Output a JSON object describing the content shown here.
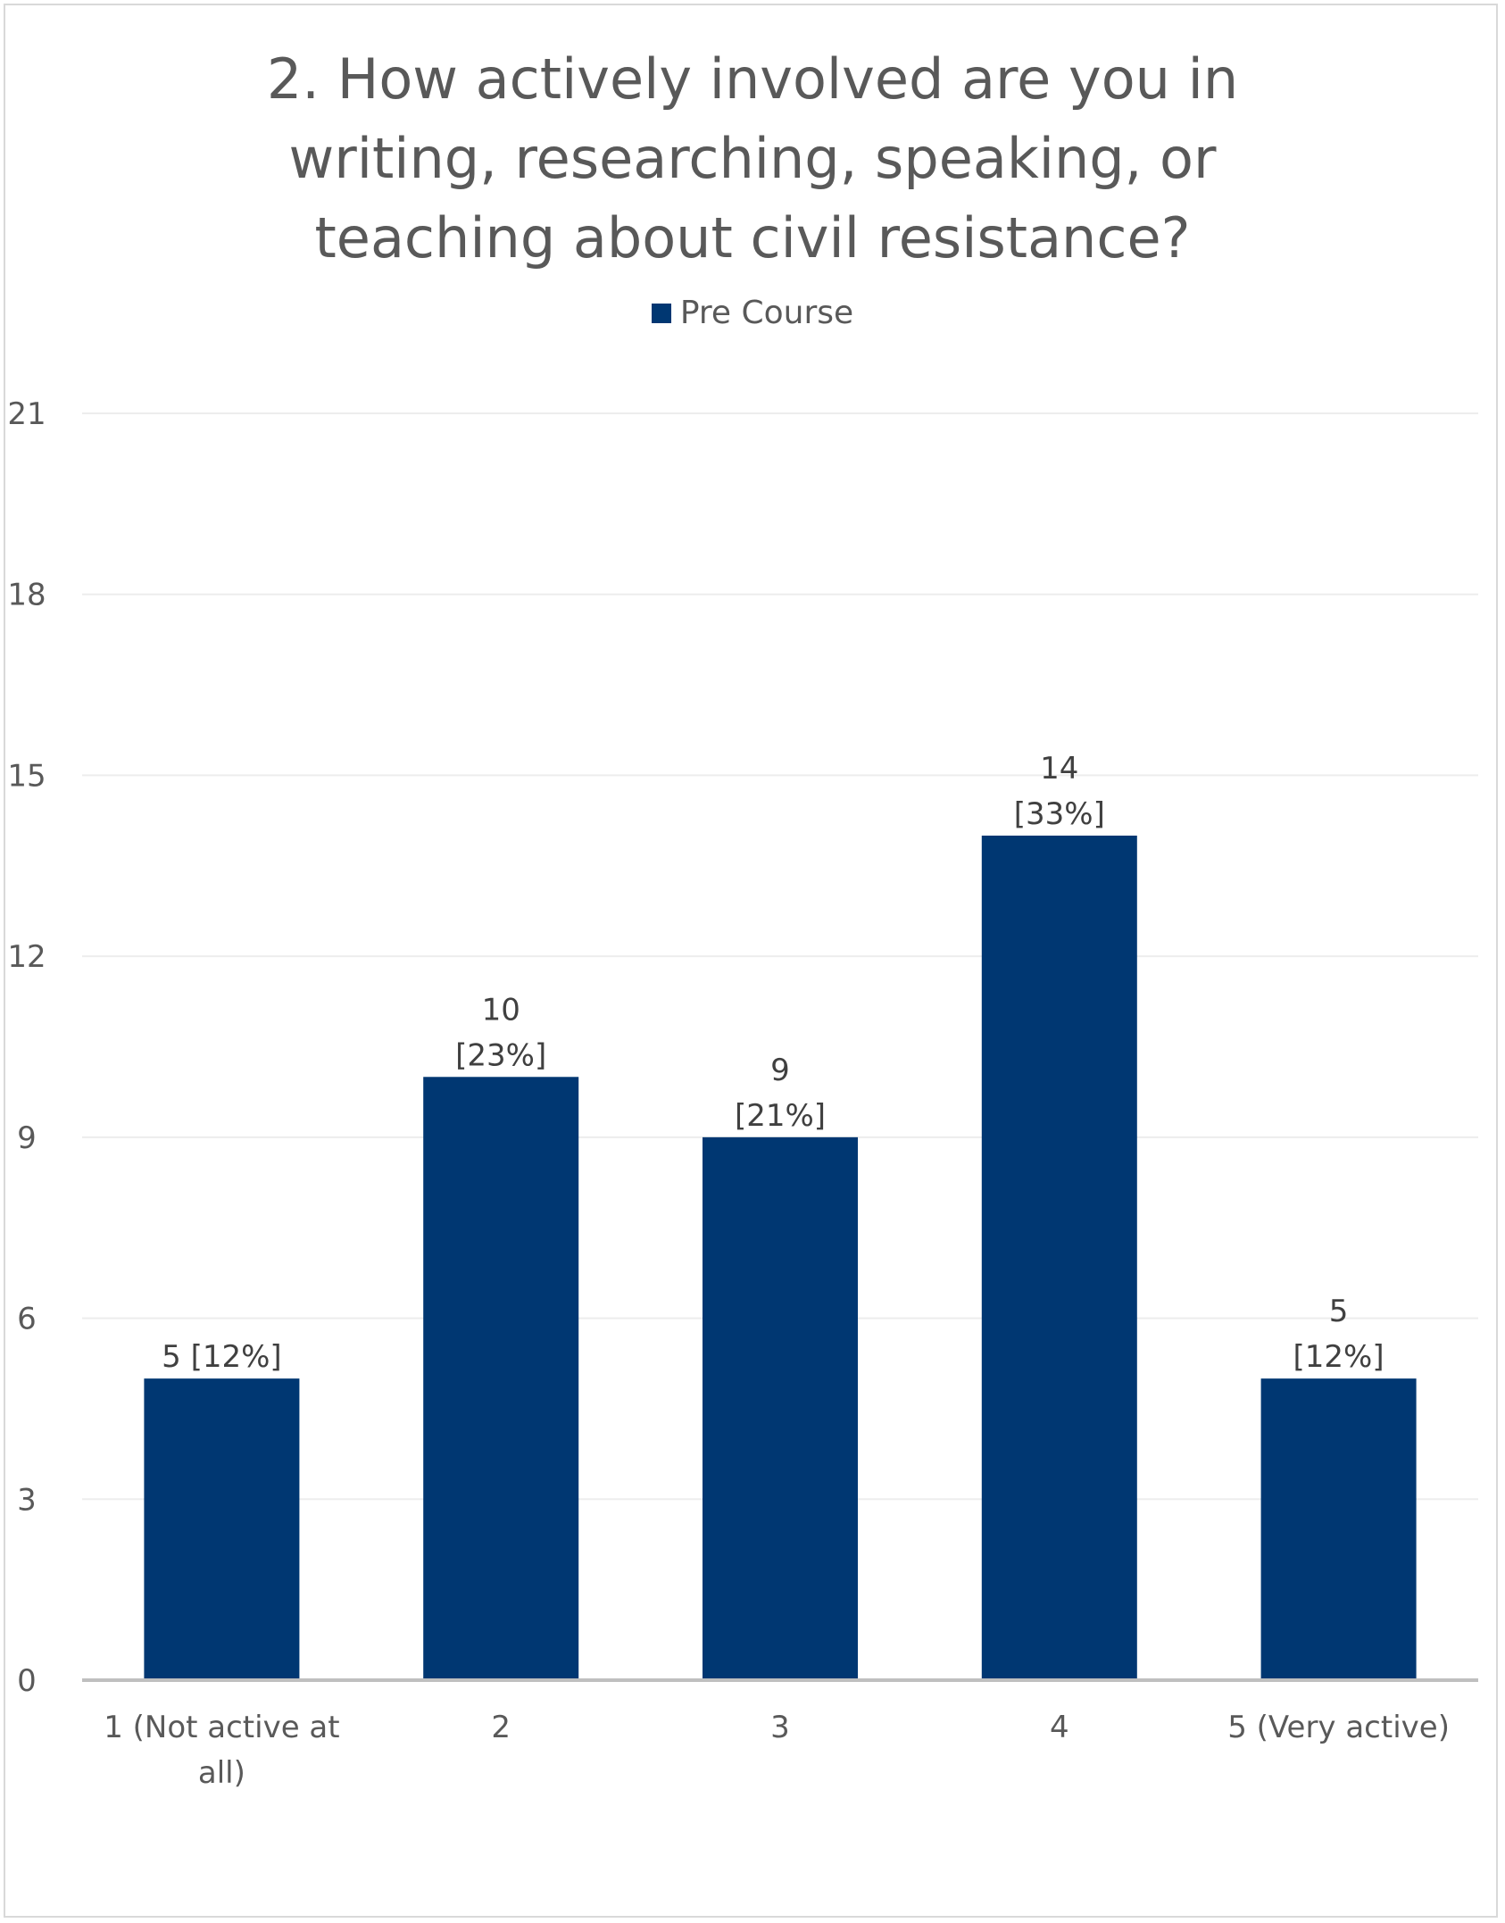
{
  "chart_data": {
    "type": "bar",
    "title": "2. How actively involved are you in writing, researching, speaking, or teaching about civil resistance?",
    "title_lines": [
      "2. How actively involved are you in",
      "writing, researching, speaking, or",
      "teaching about civil resistance?"
    ],
    "categories": [
      "1 (Not active at all)",
      "2",
      "3",
      "4",
      "5 (Very active)"
    ],
    "category_label_lines": [
      [
        "1 (Not active at",
        "all)"
      ],
      [
        "2"
      ],
      [
        "3"
      ],
      [
        "4"
      ],
      [
        "5 (Very active)"
      ]
    ],
    "series": [
      {
        "name": "Pre Course",
        "color": "#003772",
        "values": [
          5,
          10,
          9,
          14,
          5
        ]
      }
    ],
    "data_labels": [
      [
        "5 [12%]"
      ],
      [
        "10",
        "[23%]"
      ],
      [
        "9",
        "[21%]"
      ],
      [
        "14",
        "[33%]"
      ],
      [
        "5",
        "[12%]"
      ]
    ],
    "ylim": [
      0,
      21
    ],
    "yticks": [
      0,
      3,
      6,
      9,
      12,
      15,
      18,
      21
    ],
    "xlabel": "",
    "ylabel": "",
    "grid": true,
    "legend_position": "top"
  }
}
